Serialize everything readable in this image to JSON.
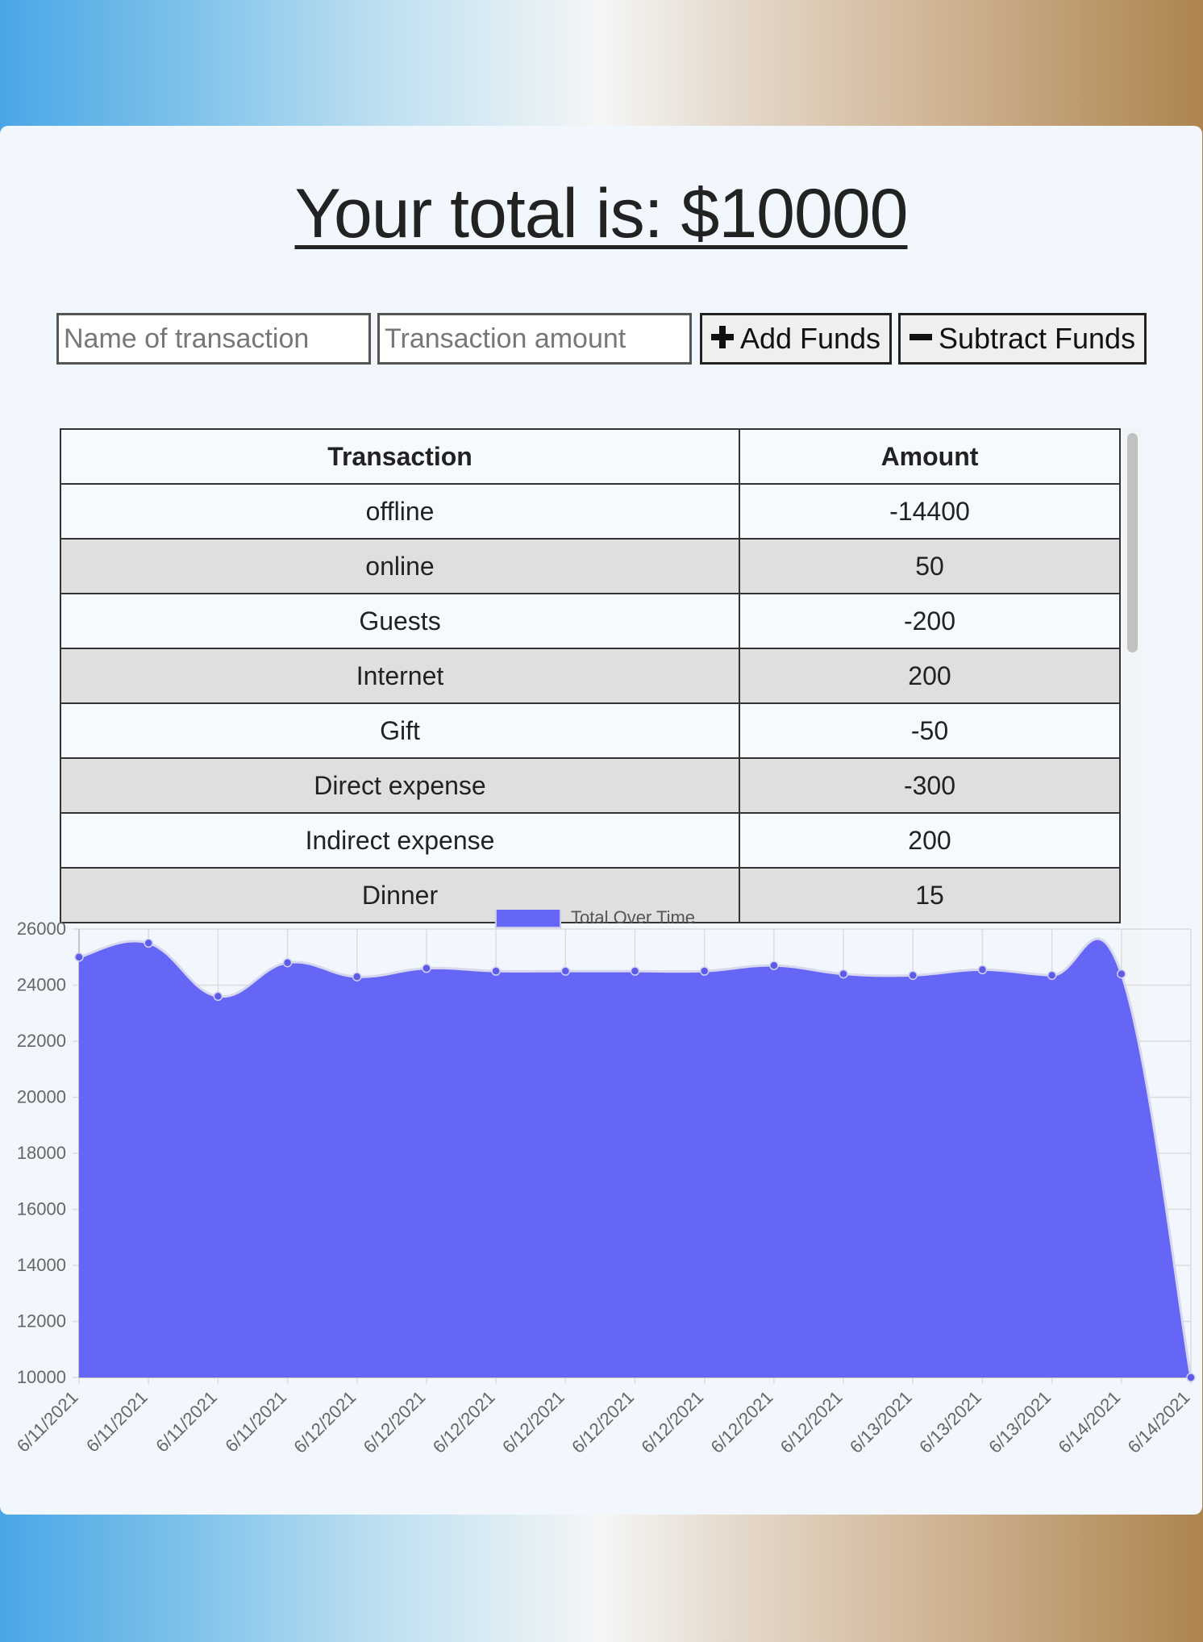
{
  "header": {
    "title": "Your total is: $10000"
  },
  "form": {
    "name_placeholder": "Name of transaction",
    "amount_placeholder": "Transaction amount",
    "add_label": "Add Funds",
    "subtract_label": "Subtract Funds"
  },
  "table": {
    "headers": [
      "Transaction",
      "Amount"
    ],
    "rows": [
      {
        "name": "offline",
        "amount": "-14400"
      },
      {
        "name": "online",
        "amount": "50"
      },
      {
        "name": "Guests",
        "amount": "-200"
      },
      {
        "name": "Internet",
        "amount": "200"
      },
      {
        "name": "Gift",
        "amount": "-50"
      },
      {
        "name": "Direct expense",
        "amount": "-300"
      },
      {
        "name": "Indirect expense",
        "amount": "200"
      },
      {
        "name": "Dinner",
        "amount": "15"
      }
    ]
  },
  "colors": {
    "accent": "#6666f6",
    "line": "#5c5ce8",
    "row_alt": "#dfdfdf",
    "card": "#f1f7fd"
  },
  "icons": {
    "add": "plus-icon",
    "subtract": "minus-icon"
  },
  "chart_data": {
    "type": "area",
    "series": [
      {
        "name": "Total Over Time",
        "values": [
          25000,
          25500,
          23600,
          24800,
          24300,
          24600,
          24500,
          24500,
          24500,
          24500,
          24700,
          24400,
          24350,
          24550,
          24350,
          24400,
          10000
        ]
      }
    ],
    "x": [
      "6/11/2021",
      "6/11/2021",
      "6/11/2021",
      "6/11/2021",
      "6/12/2021",
      "6/12/2021",
      "6/12/2021",
      "6/12/2021",
      "6/12/2021",
      "6/12/2021",
      "6/12/2021",
      "6/12/2021",
      "6/13/2021",
      "6/13/2021",
      "6/13/2021",
      "6/14/2021",
      "6/14/2021"
    ],
    "yticks": [
      10000,
      12000,
      14000,
      16000,
      18000,
      20000,
      22000,
      24000,
      26000
    ],
    "ylim": [
      10000,
      26000
    ],
    "legend_position": "top",
    "grid": true
  }
}
